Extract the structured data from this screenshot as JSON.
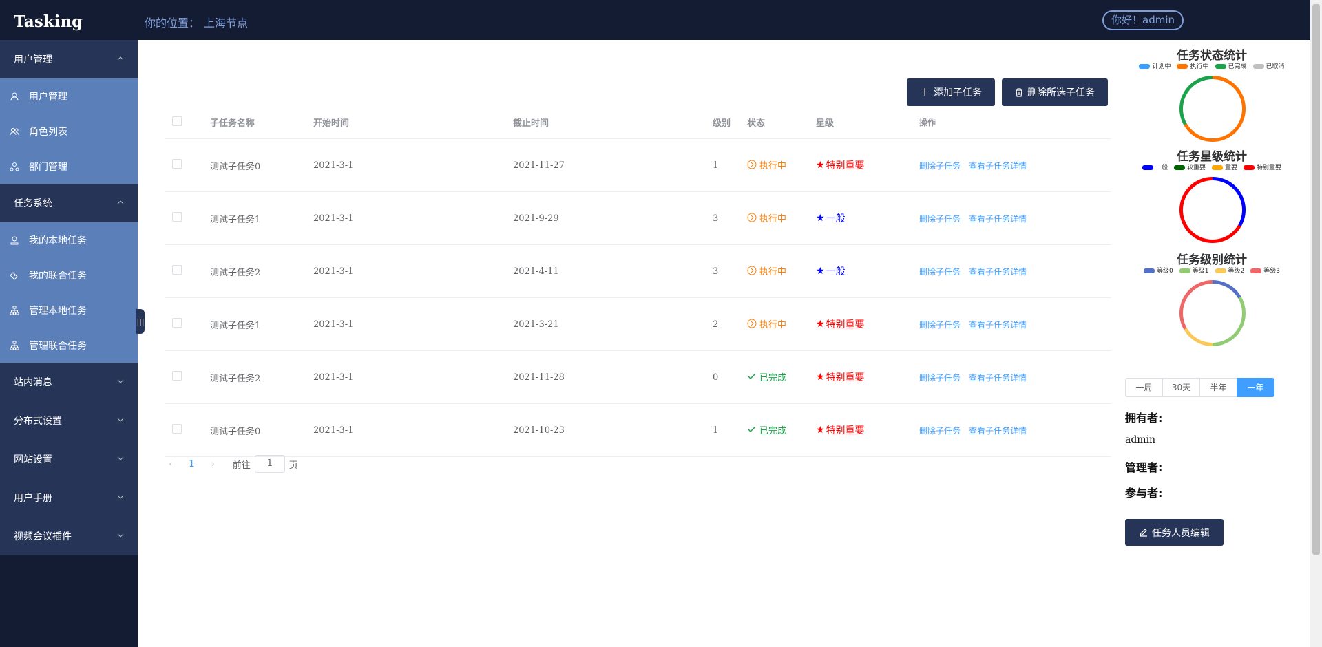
{
  "app": {
    "title": "Tasking"
  },
  "header": {
    "breadcrumb_label": "你的位置：",
    "breadcrumb_value": "上海节点",
    "greeting": "你好！admin"
  },
  "sidebar": {
    "groups": [
      {
        "label": "用户管理",
        "expanded": true,
        "items": [
          {
            "label": "用户管理",
            "icon": "user-icon"
          },
          {
            "label": "角色列表",
            "icon": "users-icon"
          },
          {
            "label": "部门管理",
            "icon": "org-icon"
          }
        ]
      },
      {
        "label": "任务系统",
        "expanded": true,
        "items": [
          {
            "label": "我的本地任务",
            "icon": "stamp-icon"
          },
          {
            "label": "我的联合任务",
            "icon": "handshake-icon"
          },
          {
            "label": "管理本地任务",
            "icon": "hierarchy-icon"
          },
          {
            "label": "管理联合任务",
            "icon": "hierarchy-icon"
          }
        ]
      },
      {
        "label": "站内消息",
        "expanded": false
      },
      {
        "label": "分布式设置",
        "expanded": false
      },
      {
        "label": "网站设置",
        "expanded": false
      },
      {
        "label": "用户手册",
        "expanded": false
      },
      {
        "label": "视频会议插件",
        "expanded": false
      }
    ]
  },
  "toolbar": {
    "add_label": "添加子任务",
    "delete_label": "删除所选子任务"
  },
  "table": {
    "columns": [
      "子任务名称",
      "开始时间",
      "截止时间",
      "级别",
      "状态",
      "星级",
      "操作"
    ],
    "rows": [
      {
        "name": "测试子任务0",
        "start": "2021-3-1",
        "end": "2021-11-27",
        "level": "1",
        "status": "执行中",
        "star": "特别重要"
      },
      {
        "name": "测试子任务1",
        "start": "2021-3-1",
        "end": "2021-9-29",
        "level": "3",
        "status": "执行中",
        "star": "一般"
      },
      {
        "name": "测试子任务2",
        "start": "2021-3-1",
        "end": "2021-4-11",
        "level": "3",
        "status": "执行中",
        "star": "一般"
      },
      {
        "name": "测试子任务1",
        "start": "2021-3-1",
        "end": "2021-3-21",
        "level": "2",
        "status": "执行中",
        "star": "特别重要"
      },
      {
        "name": "测试子任务2",
        "start": "2021-3-1",
        "end": "2021-11-28",
        "level": "0",
        "status": "已完成",
        "star": "特别重要"
      },
      {
        "name": "测试子任务0",
        "start": "2021-3-1",
        "end": "2021-10-23",
        "level": "1",
        "status": "已完成",
        "star": "特别重要"
      }
    ],
    "op_delete": "删除子任务",
    "op_view": "查看子任务详情"
  },
  "pager": {
    "current": "1",
    "goto_prefix": "前往",
    "goto_value": "1",
    "goto_suffix": "页"
  },
  "colors": {
    "star_important": "#ff0000",
    "star_normal": "#0000ff",
    "status_running": "#ff7f00",
    "status_done": "#1aa34a",
    "link": "#409eff"
  },
  "chart_data": [
    {
      "type": "pie",
      "title": "任务状态统计",
      "categories": [
        "计划中",
        "执行中",
        "已完成",
        "已取消"
      ],
      "colors": [
        "#3aa0ff",
        "#ff7300",
        "#1aa34a",
        "#c0c0c0"
      ],
      "values": [
        0,
        4,
        2,
        0
      ]
    },
    {
      "type": "pie",
      "title": "任务星级统计",
      "categories": [
        "一般",
        "较重要",
        "重要",
        "特别重要"
      ],
      "colors": [
        "#0000ff",
        "#006400",
        "#ffa500",
        "#ff0000"
      ],
      "values": [
        2,
        0,
        0,
        4
      ]
    },
    {
      "type": "pie",
      "title": "任务级别统计",
      "categories": [
        "等级0",
        "等级1",
        "等级2",
        "等级3"
      ],
      "colors": [
        "#5470c6",
        "#91cc75",
        "#fac858",
        "#ee6666"
      ],
      "values": [
        1,
        2,
        1,
        2
      ]
    }
  ],
  "range_tabs": {
    "items": [
      "一周",
      "30天",
      "半年",
      "一年"
    ],
    "active": "一年"
  },
  "people": {
    "owner_label": "拥有者:",
    "owner_value": "admin",
    "manager_label": "管理者:",
    "member_label": "参与者:",
    "edit_label": "任务人员编辑"
  }
}
